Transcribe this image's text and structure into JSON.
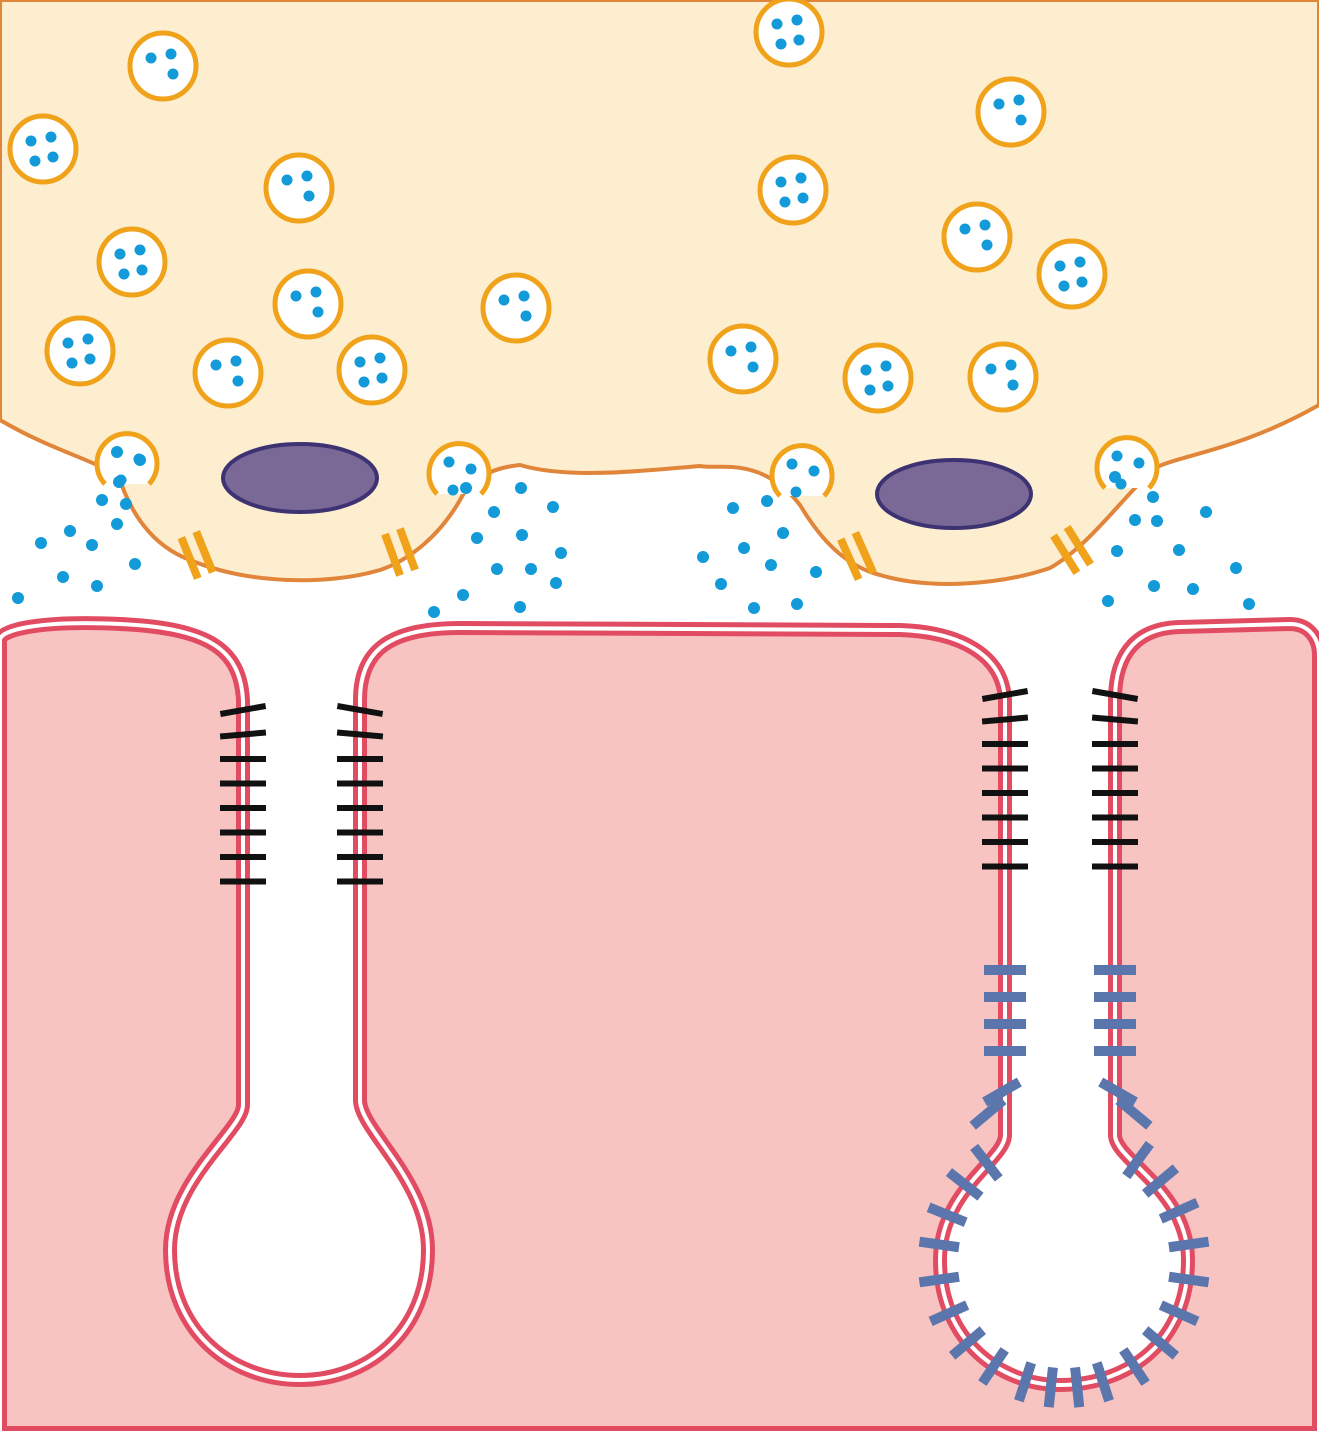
{
  "colors": {
    "background": "#ffffff",
    "terminal_fill": "#fdeecf",
    "terminal_outline": "#e0853a",
    "vesicle_ring": "#f0a21a",
    "vesicle_fill": "#ffffff",
    "transmitter_dot": "#129ad9",
    "dense_bar_fill": "#7a6897",
    "dense_bar_outline": "#3d3372",
    "channel_color": "#f0a21a",
    "muscle_fill": "#f7c4c2",
    "muscle_membrane": "#e24c62",
    "receptor_dark": "#111111",
    "receptor_blue": "#5a76ad"
  },
  "icons": {
    "vesicle": "synaptic-vesicle-icon",
    "dense_bar": "active-zone-dense-bar-icon",
    "channel": "ion-channel-icon",
    "receptor": "receptor-tick-icon"
  }
}
